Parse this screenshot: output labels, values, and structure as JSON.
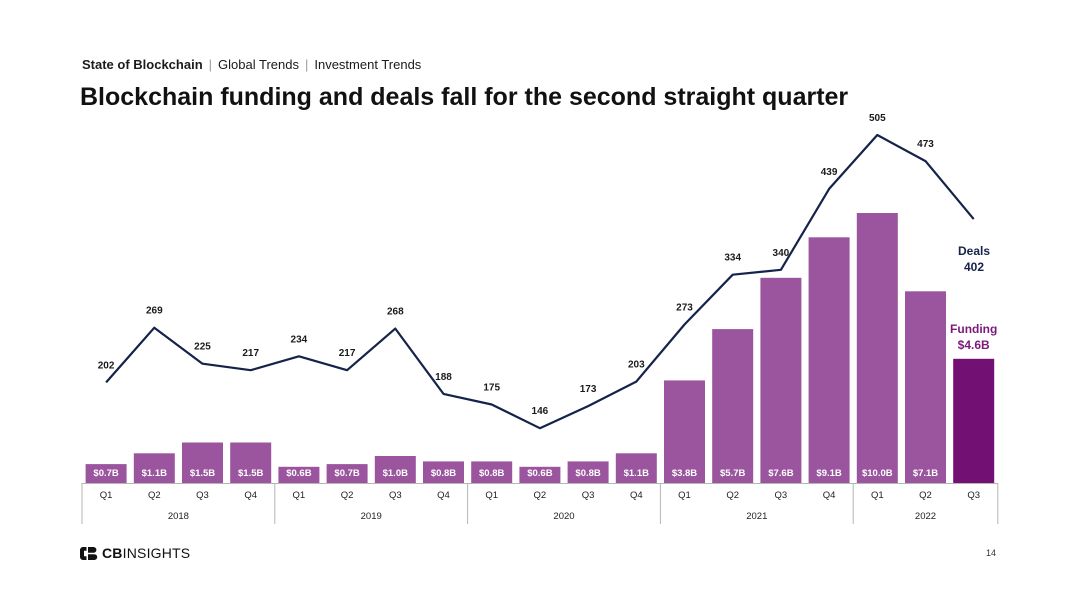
{
  "header": {
    "breadcrumb": [
      "State of Blockchain",
      "Global Trends",
      "Investment Trends"
    ],
    "title": "Blockchain funding and deals fall for the second straight quarter"
  },
  "footer": {
    "brand": [
      "CB",
      "INSIGHTS"
    ],
    "page_number": "14"
  },
  "colors": {
    "bar": "#9b559e",
    "bar_highlight": "#731073",
    "line": "#15234a",
    "funding_label": "#7a1a7a",
    "deals_label": "#15234a"
  },
  "chart_data": {
    "type": "bar",
    "categories": [
      "Q1",
      "Q2",
      "Q3",
      "Q4",
      "Q1",
      "Q2",
      "Q3",
      "Q4",
      "Q1",
      "Q2",
      "Q3",
      "Q4",
      "Q1",
      "Q2",
      "Q3",
      "Q4",
      "Q1",
      "Q2",
      "Q3"
    ],
    "years": [
      {
        "label": "2018",
        "quarters": 4
      },
      {
        "label": "2019",
        "quarters": 4
      },
      {
        "label": "2020",
        "quarters": 4
      },
      {
        "label": "2021",
        "quarters": 4
      },
      {
        "label": "2022",
        "quarters": 3
      }
    ],
    "series": [
      {
        "name": "Funding",
        "type": "bar",
        "values": [
          0.7,
          1.1,
          1.5,
          1.5,
          0.6,
          0.7,
          1.0,
          0.8,
          0.8,
          0.6,
          0.8,
          1.1,
          3.8,
          5.7,
          7.6,
          9.1,
          10.0,
          7.1,
          4.6
        ],
        "labels": [
          "$0.7B",
          "$1.1B",
          "$1.5B",
          "$1.5B",
          "$0.6B",
          "$0.7B",
          "$1.0B",
          "$0.8B",
          "$0.8B",
          "$0.6B",
          "$0.8B",
          "$1.1B",
          "$3.8B",
          "$5.7B",
          "$7.6B",
          "$9.1B",
          "$10.0B",
          "$7.1B",
          ""
        ]
      },
      {
        "name": "Deals",
        "type": "line",
        "values": [
          202,
          269,
          225,
          217,
          234,
          217,
          268,
          188,
          175,
          146,
          173,
          203,
          273,
          334,
          340,
          439,
          505,
          473,
          402
        ],
        "labels": [
          "202",
          "269",
          "225",
          "217",
          "234",
          "217",
          "268",
          "188",
          "175",
          "146",
          "173",
          "203",
          "273",
          "334",
          "340",
          "439",
          "505",
          "473",
          ""
        ]
      }
    ],
    "annotations": {
      "funding": {
        "title": "Funding",
        "value": "$4.6B"
      },
      "deals": {
        "title": "Deals",
        "value": "402"
      }
    }
  }
}
